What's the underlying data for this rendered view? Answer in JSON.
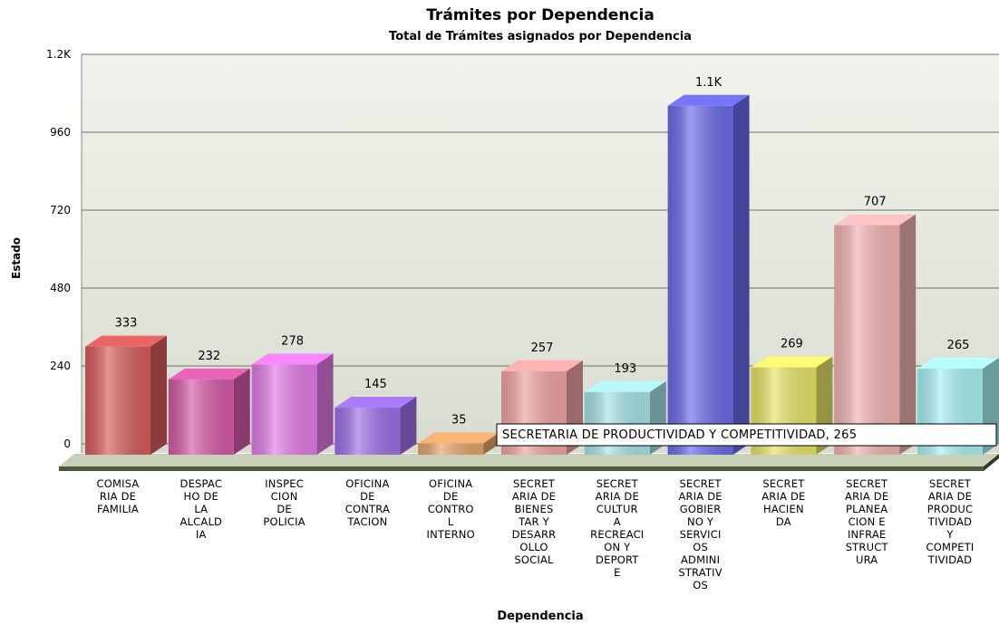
{
  "chart_data": {
    "type": "bar3d",
    "title": "Trámites por Dependencia",
    "subtitle": "Total de Trámites asignados por Dependencia",
    "y_label": "Estado",
    "x_label": "Dependencia",
    "categories": [
      "COMISA\nRIA DE\nFAMILIA",
      "DESPAC\nHO DE\nLA\nALCALD\nIA",
      "INSPEC\nCION\nDE\nPOLICIA",
      "OFICINA\nDE\nCONTRA\nTACION",
      "OFICINA\nDE\nCONTRO\nL\nINTERNO",
      "SECRET\nARIA DE\nBIENES\nTAR Y\nDESARR\nOLLO\nSOCIAL",
      "SECRET\nARIA DE\nCULTUR\nA\nRECREACI\nON Y\nDEPORT\nE",
      "SECRET\nARIA DE\nGOBIER\nNO Y\nSERVICI\nOS\nADMINI\nSTRATIV\nOS",
      "SECRET\nARIA DE\nHACIEN\nDA",
      "SECRET\nARIA DE\nPLANEA\nCION E\nINFRAE\nSTRUCT\nURA",
      "SECRET\nARIA DE\nPRODUC\nTIVIDAD\nY\nCOMPETI\nTIVIDAD"
    ],
    "values": [
      333,
      232,
      278,
      145,
      35,
      257,
      193,
      1075,
      269,
      707,
      265
    ],
    "value_labels": [
      "333",
      "232",
      "278",
      "145",
      "35",
      "257",
      "193",
      "1.1K",
      "269",
      "707",
      "265"
    ],
    "colors": [
      "#d65c5c",
      "#d45aa8",
      "#e27ae6",
      "#9b6fe6",
      "#e3a46a",
      "#f0a3a3",
      "#a6e2e6",
      "#6a6ae8",
      "#e6e468",
      "#f2b2b2",
      "#a8f0f2"
    ],
    "ylim": [
      0,
      1200
    ],
    "yticks": [
      0,
      240,
      480,
      720,
      960,
      {
        "value": 1200,
        "label": "1.2K"
      }
    ],
    "grid": true,
    "tooltip": "SECRETARIA DE PRODUCTIVIDAD Y COMPETITIVIDAD, 265"
  }
}
